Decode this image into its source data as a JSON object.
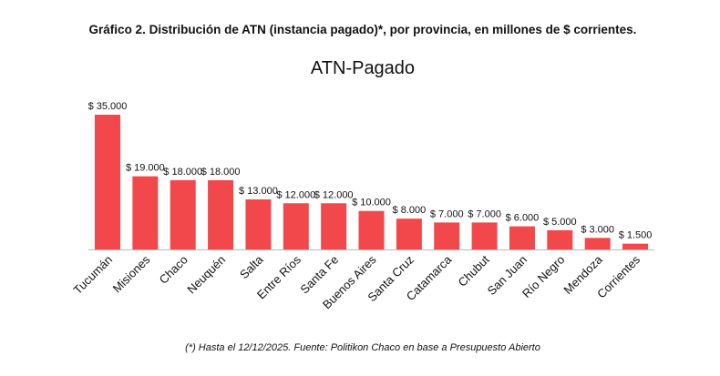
{
  "chart_data": {
    "type": "bar",
    "title": "Gráfico 2. Distribución de ATN (instancia pagado)*, por provincia, en millones de $ corrientes.",
    "subtitle": "ATN-Pagado",
    "footnote": "(*) Hasta el 12/12/2025. Fuente: Politikon Chaco en base a Presupuesto Abierto",
    "categories": [
      "Tucumán",
      "Misiones",
      "Chaco",
      "Neuquén",
      "Salta",
      "Entre Ríos",
      "Santa Fe",
      "Buenos Aires",
      "Santa Cruz",
      "Catamarca",
      "Chubut",
      "San Juan",
      "Río Negro",
      "Mendoza",
      "Corrientes"
    ],
    "values": [
      35000,
      19000,
      18000,
      18000,
      13000,
      12000,
      12000,
      10000,
      8000,
      7000,
      7000,
      6000,
      5000,
      3000,
      1500
    ],
    "value_labels": [
      "$ 35.000",
      "$ 19.000",
      "$ 18.000",
      "$ 18.000",
      "$ 13.000",
      "$ 12.000",
      "$ 12.000",
      "$ 10.000",
      "$ 8.000",
      "$ 7.000",
      "$ 7.000",
      "$ 6.000",
      "$ 5.000",
      "$ 3.000",
      "$ 1.500"
    ],
    "color": "#f2484b"
  }
}
